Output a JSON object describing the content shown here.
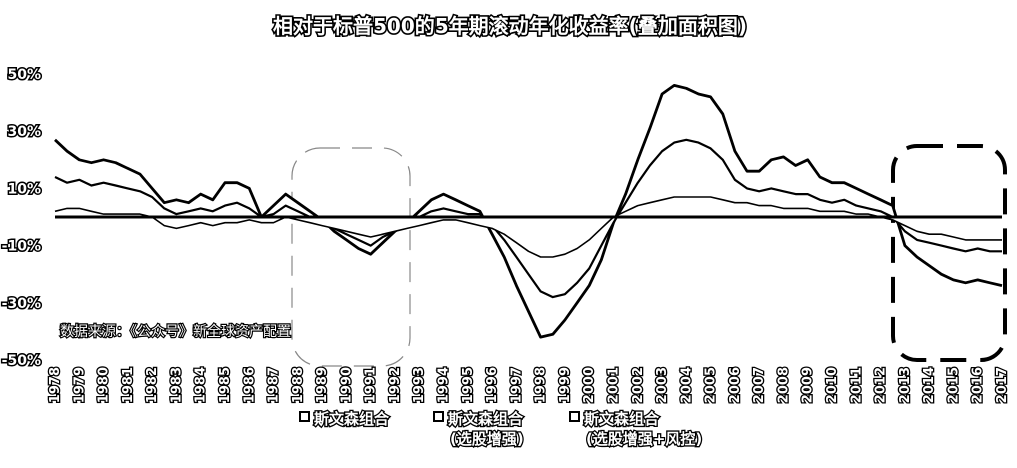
{
  "chart_data": {
    "type": "line",
    "title": "相对于标普500的5年期滚动年化收益率(叠加面积图)",
    "xlabel": "",
    "ylabel": "",
    "x_range": [
      1978,
      2017
    ],
    "ylim": [
      -0.5,
      0.5
    ],
    "y_ticks": [
      "50%",
      "30%",
      "10%",
      "-10%",
      "-30%",
      "-50%"
    ],
    "y_tick_values": [
      0.5,
      0.3,
      0.1,
      -0.1,
      -0.3,
      -0.5
    ],
    "x_ticks": [
      "1978",
      "1979",
      "1980",
      "1981",
      "1982",
      "1983",
      "1984",
      "1985",
      "1986",
      "1987",
      "1988",
      "1989",
      "1990",
      "1991",
      "1992",
      "1993",
      "1994",
      "1995",
      "1996",
      "1997",
      "1998",
      "1999",
      "2000",
      "2001",
      "2002",
      "2003",
      "2004",
      "2005",
      "2006",
      "2007",
      "2008",
      "2009",
      "2010",
      "2011",
      "2012",
      "2013",
      "2014",
      "2015",
      "2016",
      "2017"
    ],
    "grid": false,
    "legend_position": "bottom",
    "annotation": "数据来源：《公众号》新全球资产配置",
    "highlight_boxes": 2,
    "colors": {
      "fill": "#ffffff",
      "stroke": "#000000"
    },
    "series": [
      {
        "name": "斯文森组合",
        "legend_label": [
          "斯文森组合"
        ],
        "x": [
          1978.0,
          1978.5,
          1979.0,
          1979.5,
          1980.0,
          1980.5,
          1981.0,
          1981.5,
          1982.0,
          1982.5,
          1983.0,
          1983.5,
          1984.0,
          1984.5,
          1985.0,
          1985.5,
          1986.0,
          1986.5,
          1987.0,
          1987.5,
          1988.0,
          1988.5,
          1989.0,
          1989.5,
          1990.0,
          1990.5,
          1991.0,
          1991.5,
          1992.0,
          1992.5,
          1993.0,
          1993.5,
          1994.0,
          1994.5,
          1995.0,
          1995.5,
          1996.0,
          1996.5,
          1997.0,
          1997.5,
          1998.0,
          1998.5,
          1999.0,
          1999.5,
          2000.0,
          2000.5,
          2001.0,
          2001.5,
          2002.0,
          2002.5,
          2003.0,
          2003.5,
          2004.0,
          2004.5,
          2005.0,
          2005.5,
          2006.0,
          2006.5,
          2007.0,
          2007.5,
          2008.0,
          2008.5,
          2009.0,
          2009.5,
          2010.0,
          2010.5,
          2011.0,
          2011.5,
          2012.0,
          2012.5,
          2013.0,
          2013.5,
          2014.0,
          2014.5,
          2015.0,
          2015.5,
          2016.0,
          2016.5,
          2017.0
        ],
        "values": [
          0.02,
          0.03,
          0.03,
          0.02,
          0.01,
          0.01,
          0.01,
          0.01,
          0.0,
          -0.03,
          -0.04,
          -0.03,
          -0.02,
          -0.03,
          -0.02,
          -0.02,
          -0.01,
          -0.02,
          -0.02,
          0.0,
          -0.01,
          -0.02,
          -0.03,
          -0.04,
          -0.05,
          -0.06,
          -0.07,
          -0.06,
          -0.05,
          -0.04,
          -0.03,
          -0.02,
          -0.01,
          -0.01,
          -0.02,
          -0.03,
          -0.04,
          -0.06,
          -0.09,
          -0.12,
          -0.14,
          -0.14,
          -0.13,
          -0.11,
          -0.08,
          -0.04,
          0.0,
          0.02,
          0.04,
          0.05,
          0.06,
          0.07,
          0.07,
          0.07,
          0.07,
          0.06,
          0.05,
          0.05,
          0.04,
          0.04,
          0.03,
          0.03,
          0.03,
          0.02,
          0.02,
          0.02,
          0.01,
          0.01,
          0.0,
          -0.01,
          -0.03,
          -0.05,
          -0.06,
          -0.06,
          -0.07,
          -0.08,
          -0.08,
          -0.08,
          -0.08
        ]
      },
      {
        "name": "斯文森组合(选股增强)",
        "legend_label": [
          "斯文森组合",
          "(选股增强)"
        ],
        "x": [
          1978.0,
          1978.5,
          1979.0,
          1979.5,
          1980.0,
          1980.5,
          1981.0,
          1981.5,
          1982.0,
          1982.5,
          1983.0,
          1983.5,
          1984.0,
          1984.5,
          1985.0,
          1985.5,
          1986.0,
          1986.5,
          1987.0,
          1987.5,
          1988.0,
          1988.5,
          1989.0,
          1989.5,
          1990.0,
          1990.5,
          1991.0,
          1991.5,
          1992.0,
          1992.5,
          1993.0,
          1993.5,
          1994.0,
          1994.5,
          1995.0,
          1995.5,
          1996.0,
          1996.5,
          1997.0,
          1997.5,
          1998.0,
          1998.5,
          1999.0,
          1999.5,
          2000.0,
          2000.5,
          2001.0,
          2001.5,
          2002.0,
          2002.5,
          2003.0,
          2003.5,
          2004.0,
          2004.5,
          2005.0,
          2005.5,
          2006.0,
          2006.5,
          2007.0,
          2007.5,
          2008.0,
          2008.5,
          2009.0,
          2009.5,
          2010.0,
          2010.5,
          2011.0,
          2011.5,
          2012.0,
          2012.5,
          2013.0,
          2013.5,
          2014.0,
          2014.5,
          2015.0,
          2015.5,
          2016.0,
          2016.5,
          2017.0
        ],
        "values": [
          0.14,
          0.12,
          0.13,
          0.11,
          0.12,
          0.11,
          0.1,
          0.09,
          0.07,
          0.03,
          0.01,
          0.02,
          0.03,
          0.02,
          0.04,
          0.05,
          0.03,
          0.0,
          0.01,
          0.04,
          0.02,
          0.0,
          -0.02,
          -0.04,
          -0.06,
          -0.08,
          -0.1,
          -0.07,
          -0.05,
          -0.03,
          0.0,
          0.02,
          0.03,
          0.02,
          0.01,
          0.01,
          -0.03,
          -0.08,
          -0.14,
          -0.2,
          -0.26,
          -0.28,
          -0.27,
          -0.23,
          -0.18,
          -0.1,
          -0.02,
          0.05,
          0.12,
          0.18,
          0.23,
          0.26,
          0.27,
          0.26,
          0.24,
          0.2,
          0.13,
          0.1,
          0.09,
          0.1,
          0.09,
          0.08,
          0.08,
          0.06,
          0.05,
          0.06,
          0.04,
          0.03,
          0.02,
          0.0,
          -0.05,
          -0.08,
          -0.09,
          -0.1,
          -0.11,
          -0.12,
          -0.11,
          -0.12,
          -0.12
        ]
      },
      {
        "name": "斯文森组合(选股增强+风控)",
        "legend_label": [
          "斯文森组合",
          "(选股增强+风控)"
        ],
        "x": [
          1978.0,
          1978.5,
          1979.0,
          1979.5,
          1980.0,
          1980.5,
          1981.0,
          1981.5,
          1982.0,
          1982.5,
          1983.0,
          1983.5,
          1984.0,
          1984.5,
          1985.0,
          1985.5,
          1986.0,
          1986.5,
          1987.0,
          1987.5,
          1988.0,
          1988.5,
          1989.0,
          1989.5,
          1990.0,
          1990.5,
          1991.0,
          1991.5,
          1992.0,
          1992.5,
          1993.0,
          1993.5,
          1994.0,
          1994.5,
          1995.0,
          1995.5,
          1996.0,
          1996.5,
          1997.0,
          1997.5,
          1998.0,
          1998.5,
          1999.0,
          1999.5,
          2000.0,
          2000.5,
          2001.0,
          2001.5,
          2002.0,
          2002.5,
          2003.0,
          2003.5,
          2004.0,
          2004.5,
          2005.0,
          2005.5,
          2006.0,
          2006.5,
          2007.0,
          2007.5,
          2008.0,
          2008.5,
          2009.0,
          2009.5,
          2010.0,
          2010.5,
          2011.0,
          2011.5,
          2012.0,
          2012.5,
          2013.0,
          2013.5,
          2014.0,
          2014.5,
          2015.0,
          2015.5,
          2016.0,
          2016.5,
          2017.0
        ],
        "values": [
          0.27,
          0.23,
          0.2,
          0.19,
          0.2,
          0.19,
          0.17,
          0.15,
          0.1,
          0.05,
          0.06,
          0.05,
          0.08,
          0.06,
          0.12,
          0.12,
          0.1,
          0.0,
          0.04,
          0.08,
          0.05,
          0.02,
          -0.01,
          -0.05,
          -0.08,
          -0.11,
          -0.13,
          -0.09,
          -0.05,
          -0.02,
          0.02,
          0.06,
          0.08,
          0.06,
          0.04,
          0.02,
          -0.06,
          -0.14,
          -0.24,
          -0.33,
          -0.42,
          -0.41,
          -0.36,
          -0.3,
          -0.24,
          -0.15,
          -0.02,
          0.08,
          0.2,
          0.31,
          0.43,
          0.46,
          0.45,
          0.43,
          0.42,
          0.36,
          0.23,
          0.16,
          0.16,
          0.2,
          0.21,
          0.18,
          0.2,
          0.14,
          0.12,
          0.12,
          0.1,
          0.08,
          0.06,
          0.04,
          -0.1,
          -0.14,
          -0.17,
          -0.2,
          -0.22,
          -0.23,
          -0.22,
          -0.23,
          -0.24
        ]
      }
    ]
  }
}
